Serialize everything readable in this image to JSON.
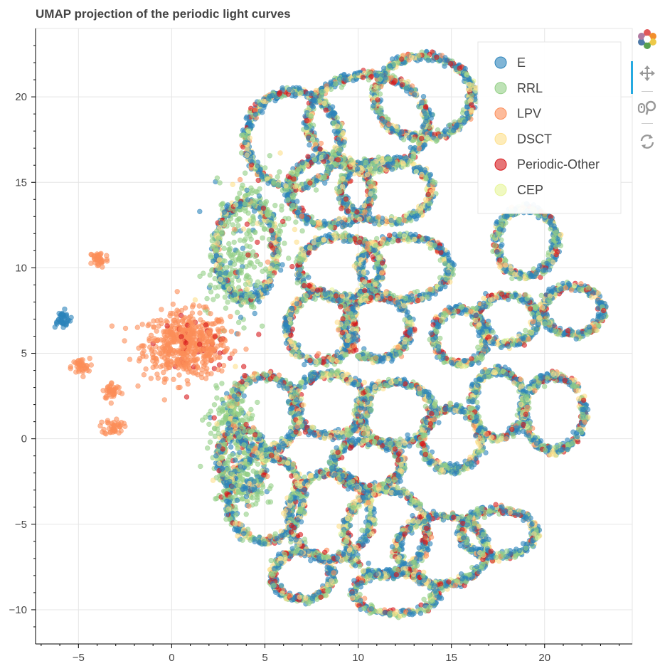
{
  "title": "UMAP projection of the periodic light curves",
  "toolbar": {
    "logo_icon": "bokeh-logo-icon",
    "tools": [
      {
        "name": "pan-tool",
        "icon": "move-arrows-icon",
        "active": true
      },
      {
        "name": "wheel-zoom-tool",
        "icon": "wheel-zoom-icon",
        "active": false
      },
      {
        "name": "reset-tool",
        "icon": "reset-icon",
        "active": false
      }
    ]
  },
  "chart_data": {
    "type": "scatter",
    "title": "UMAP projection of the periodic light curves",
    "xlabel": "",
    "ylabel": "",
    "xlim": [
      -7.3,
      24.7
    ],
    "ylim": [
      -12,
      24
    ],
    "x_ticks": [
      "−5",
      "0",
      "5",
      "10",
      "15",
      "20"
    ],
    "x_tick_values": [
      -5,
      0,
      5,
      10,
      15,
      20
    ],
    "y_ticks": [
      "20",
      "15",
      "10",
      "5",
      "0",
      "−5",
      "−10"
    ],
    "y_tick_values": [
      20,
      15,
      10,
      5,
      0,
      -5,
      -10
    ],
    "grid": true,
    "legend_position": "top-right",
    "series": [
      {
        "name": "E",
        "color": "#2b83ba"
      },
      {
        "name": "RRL",
        "color": "#93cf86"
      },
      {
        "name": "LPV",
        "color": "#fc8d59"
      },
      {
        "name": "DSCT",
        "color": "#fee08b"
      },
      {
        "name": "Periodic-Other",
        "color": "#d7191c"
      },
      {
        "name": "CEP",
        "color": "#e6f598"
      }
    ],
    "approximate_cluster_centers": [
      {
        "series": "LPV",
        "x": 0.8,
        "y": 5.5
      },
      {
        "series": "LPV",
        "x": -4.9,
        "y": 4.2
      },
      {
        "series": "LPV",
        "x": -3.9,
        "y": 10.5
      },
      {
        "series": "LPV",
        "x": -3.2,
        "y": 2.8
      },
      {
        "series": "LPV",
        "x": -3.1,
        "y": 0.7
      },
      {
        "series": "E",
        "x": -5.9,
        "y": 7.0
      }
    ]
  }
}
